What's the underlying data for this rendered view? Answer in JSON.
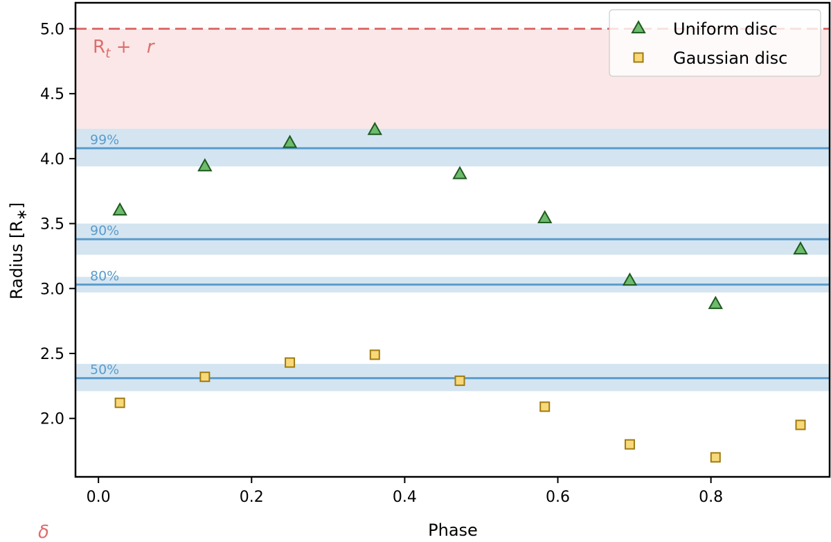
{
  "chart_data": {
    "type": "scatter",
    "xlabel": "Phase",
    "ylabel": "Radius [R",
    "ylabel_sub": "∗",
    "ylabel_close": "]",
    "xlim": [
      -0.03,
      0.955
    ],
    "ylim": [
      1.55,
      5.2
    ],
    "xticks": [
      0.0,
      0.2,
      0.4,
      0.6,
      0.8
    ],
    "xtick_labels": [
      "0.0",
      "0.2",
      "0.4",
      "0.6",
      "0.8"
    ],
    "yticks": [
      2.0,
      2.5,
      3.0,
      3.5,
      4.0,
      4.5,
      5.0
    ],
    "ytick_labels": [
      "2.0",
      "2.5",
      "3.0",
      "3.5",
      "4.0",
      "4.5",
      "5.0"
    ],
    "series": [
      {
        "name": "Uniform disc",
        "marker": "triangle",
        "fill": "#6dbb6d",
        "stroke": "#1e5a1e",
        "x": [
          0.028,
          0.139,
          0.25,
          0.361,
          0.472,
          0.583,
          0.694,
          0.806,
          0.917
        ],
        "y": [
          3.6,
          3.94,
          4.12,
          4.22,
          3.88,
          3.54,
          3.06,
          2.88,
          3.3
        ]
      },
      {
        "name": "Gaussian disc",
        "marker": "square",
        "fill": "#f7d97a",
        "stroke": "#a07a10",
        "x": [
          0.028,
          0.139,
          0.25,
          0.361,
          0.472,
          0.583,
          0.694,
          0.806,
          0.917
        ],
        "y": [
          2.12,
          2.32,
          2.43,
          2.49,
          2.29,
          2.09,
          1.8,
          1.7,
          1.95
        ]
      }
    ],
    "bands": [
      {
        "label": "99%",
        "value": 4.08,
        "low": 3.94,
        "high": 4.23
      },
      {
        "label": "90%",
        "value": 3.38,
        "low": 3.26,
        "high": 3.5
      },
      {
        "label": "80%",
        "value": 3.03,
        "low": 2.97,
        "high": 3.09
      },
      {
        "label": "50%",
        "value": 2.31,
        "low": 2.21,
        "high": 2.42
      }
    ],
    "band_color": "#5b9ccc",
    "band_fill": "#cfe2f0",
    "limit_line": {
      "value": 5.0,
      "shade_low": 4.23,
      "color": "#dd6e6e",
      "shade": "#fbe7e7",
      "label_main": "R",
      "label_sub": "t",
      "label_plus": " + ",
      "label_r": "r",
      "delta_label": "δ"
    },
    "legend_position": "top-right"
  }
}
